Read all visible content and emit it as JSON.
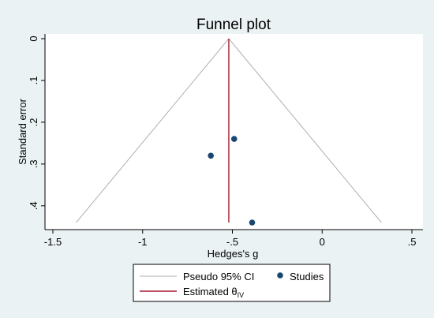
{
  "chart_data": {
    "type": "scatter",
    "title": "Funnel plot",
    "xlabel": "Hedges's g",
    "ylabel": "Standard error",
    "xlim": [
      -1.5,
      0.5
    ],
    "ylim": [
      0,
      0.44
    ],
    "y_reversed": true,
    "grid": false,
    "legend_position": "bottom-center",
    "x_ticks": [
      -1.5,
      -1,
      -0.5,
      0,
      0.5
    ],
    "x_tick_labels": [
      "-1.5",
      "-1",
      "-.5",
      "0",
      ".5"
    ],
    "y_ticks": [
      0,
      0.1,
      0.2,
      0.3,
      0.4
    ],
    "y_tick_labels": [
      "0",
      ".1",
      ".2",
      ".3",
      ".4"
    ],
    "estimated_effect": -0.52,
    "pseudo_ci_apex": [
      -0.52,
      0
    ],
    "pseudo_ci_base": [
      [
        -1.37,
        0.44
      ],
      [
        0.33,
        0.44
      ]
    ],
    "series": [
      {
        "name": "Studies",
        "points": [
          {
            "x": -0.49,
            "y": 0.24
          },
          {
            "x": -0.62,
            "y": 0.28
          },
          {
            "x": -0.39,
            "y": 0.44
          }
        ]
      }
    ],
    "legend": {
      "ci_label": "Pseudo 95% CI",
      "estimate_label": "Estimated θ",
      "estimate_subscript": "IV",
      "studies_label": "Studies"
    },
    "colors": {
      "outer_background": "#EAF2F3",
      "plot_background": "#FFFFFF",
      "ci_line": "#B0B0B0",
      "estimate_line": "#A51C30",
      "points": "#1A476F",
      "title": "#1E2A4A"
    }
  }
}
